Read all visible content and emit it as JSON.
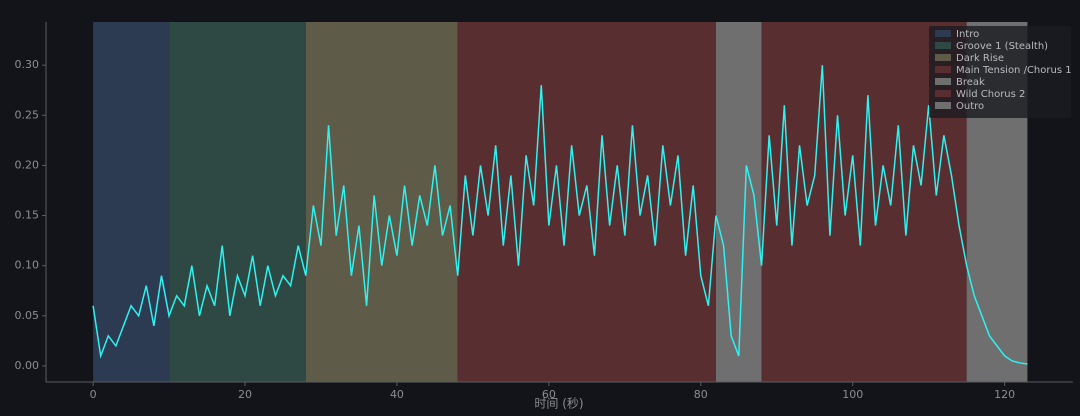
{
  "chart_data": {
    "type": "line",
    "xlabel": "时间 (秒)",
    "xlim": [
      -6.2,
      129
    ],
    "ylim": [
      -0.016,
      0.343
    ],
    "xticks": [
      0,
      20,
      40,
      60,
      80,
      100,
      120
    ],
    "yticks": [
      {
        "value": 0,
        "label": "0.00"
      },
      {
        "value": 0.05,
        "label": "0.05"
      },
      {
        "value": 0.1,
        "label": "0.10"
      },
      {
        "value": 0.15,
        "label": "0.15"
      },
      {
        "value": 0.2,
        "label": "0.20"
      },
      {
        "value": 0.25,
        "label": "0.25"
      },
      {
        "value": 0.3,
        "label": "0.30"
      }
    ],
    "legend": "upper right",
    "regions": [
      {
        "name": "Intro",
        "start": 0,
        "end": 10,
        "color": "#2d3b52"
      },
      {
        "name": "Groove 1 (Stealth)",
        "start": 10,
        "end": 28,
        "color": "#2e4843"
      },
      {
        "name": "Dark Rise",
        "start": 28,
        "end": 48,
        "color": "#5e5b48"
      },
      {
        "name": "Main Tension /Chorus 1",
        "start": 48,
        "end": 82,
        "color": "#592e30"
      },
      {
        "name": "Break",
        "start": 82,
        "end": 88,
        "color": "#6f6f6f"
      },
      {
        "name": "Wild Chorus 2",
        "start": 88,
        "end": 115,
        "color": "#592e30"
      },
      {
        "name": "Outro",
        "start": 115,
        "end": 123,
        "color": "#6f6f6f"
      }
    ],
    "series": [
      {
        "color": "#2ef2f0",
        "x": [
          0,
          1,
          2,
          3,
          4,
          5,
          6,
          7,
          8,
          9,
          10,
          11,
          12,
          13,
          14,
          15,
          16,
          17,
          18,
          19,
          20,
          21,
          22,
          23,
          24,
          25,
          26,
          27,
          28,
          29,
          30,
          31,
          32,
          33,
          34,
          35,
          36,
          37,
          38,
          39,
          40,
          41,
          42,
          43,
          44,
          45,
          46,
          47,
          48,
          49,
          50,
          51,
          52,
          53,
          54,
          55,
          56,
          57,
          58,
          59,
          60,
          61,
          62,
          63,
          64,
          65,
          66,
          67,
          68,
          69,
          70,
          71,
          72,
          73,
          74,
          75,
          76,
          77,
          78,
          79,
          80,
          81,
          82,
          83,
          84,
          85,
          86,
          87,
          88,
          89,
          90,
          91,
          92,
          93,
          94,
          95,
          96,
          97,
          98,
          99,
          100,
          101,
          102,
          103,
          104,
          105,
          106,
          107,
          108,
          109,
          110,
          111,
          112,
          113,
          114,
          115,
          116,
          117,
          118,
          119,
          120,
          121,
          122,
          123
        ],
        "values": [
          0.06,
          0.01,
          0.03,
          0.02,
          0.04,
          0.06,
          0.05,
          0.08,
          0.04,
          0.09,
          0.05,
          0.07,
          0.06,
          0.1,
          0.05,
          0.08,
          0.06,
          0.12,
          0.05,
          0.09,
          0.07,
          0.11,
          0.06,
          0.1,
          0.07,
          0.09,
          0.08,
          0.12,
          0.09,
          0.16,
          0.12,
          0.24,
          0.13,
          0.18,
          0.09,
          0.14,
          0.06,
          0.17,
          0.1,
          0.15,
          0.11,
          0.18,
          0.12,
          0.17,
          0.14,
          0.2,
          0.13,
          0.16,
          0.09,
          0.19,
          0.13,
          0.2,
          0.15,
          0.22,
          0.12,
          0.19,
          0.1,
          0.21,
          0.16,
          0.28,
          0.14,
          0.2,
          0.12,
          0.22,
          0.15,
          0.18,
          0.11,
          0.23,
          0.14,
          0.2,
          0.13,
          0.24,
          0.15,
          0.19,
          0.12,
          0.22,
          0.16,
          0.21,
          0.11,
          0.18,
          0.09,
          0.06,
          0.15,
          0.12,
          0.03,
          0.01,
          0.2,
          0.17,
          0.1,
          0.23,
          0.14,
          0.26,
          0.12,
          0.22,
          0.16,
          0.19,
          0.3,
          0.13,
          0.25,
          0.15,
          0.21,
          0.12,
          0.27,
          0.14,
          0.2,
          0.16,
          0.24,
          0.13,
          0.22,
          0.18,
          0.26,
          0.17,
          0.23,
          0.19,
          0.14,
          0.1,
          0.07,
          0.05,
          0.03,
          0.02,
          0.01,
          0.005,
          0.003,
          0.002
        ]
      }
    ]
  }
}
